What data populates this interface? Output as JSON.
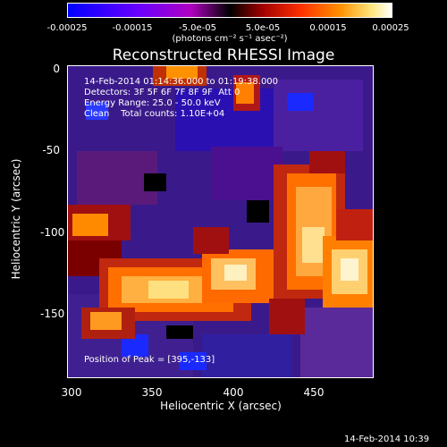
{
  "colorbar": {
    "ticks": [
      "-0.00025",
      "-0.00015",
      "-5.0e-05",
      "5.0e-05",
      "0.00015",
      "0.00025"
    ],
    "units": "(photons cm⁻² s⁻¹ asec⁻²)"
  },
  "title": "Reconstructed RHESSI Image",
  "annotations": {
    "line1": "14-Feb-2014 01:14:36.000 to 01:19:38.000",
    "line2": "Detectors: 3F 5F 6F 7F 8F 9F  Att 0",
    "line3": "Energy Range: 25.0 - 50.0 keV",
    "line4": "Clean    Total counts: 1.10E+04",
    "peak": "Position of Peak = [395,-133]"
  },
  "axes": {
    "xlabel": "Heliocentric X (arcsec)",
    "ylabel": "Heliocentric Y (arcsec)",
    "xticks": [
      "300",
      "350",
      "400",
      "450"
    ],
    "yticks": [
      "0",
      "-50",
      "-100",
      "-150"
    ]
  },
  "timestamp": "14-Feb-2014 10:39"
}
